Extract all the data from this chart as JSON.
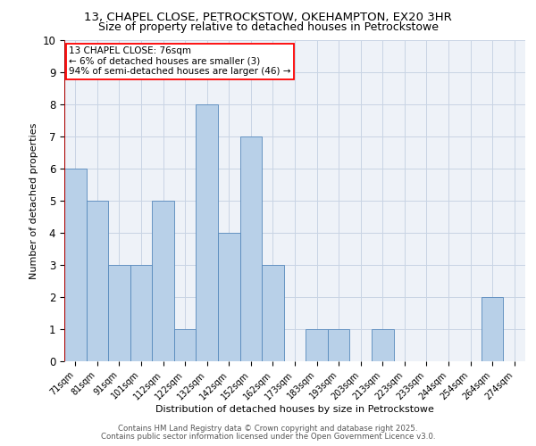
{
  "title_line1": "13, CHAPEL CLOSE, PETROCKSTOW, OKEHAMPTON, EX20 3HR",
  "title_line2": "Size of property relative to detached houses in Petrockstowe",
  "xlabel": "Distribution of detached houses by size in Petrockstowe",
  "ylabel": "Number of detached properties",
  "bin_labels": [
    "71sqm",
    "81sqm",
    "91sqm",
    "101sqm",
    "112sqm",
    "122sqm",
    "132sqm",
    "142sqm",
    "152sqm",
    "162sqm",
    "173sqm",
    "183sqm",
    "193sqm",
    "203sqm",
    "213sqm",
    "223sqm",
    "233sqm",
    "244sqm",
    "254sqm",
    "264sqm",
    "274sqm"
  ],
  "bin_counts": [
    6,
    5,
    3,
    3,
    5,
    1,
    8,
    4,
    7,
    3,
    0,
    1,
    1,
    0,
    1,
    0,
    0,
    0,
    0,
    2,
    0
  ],
  "bar_color": "#b8d0e8",
  "bar_edge_color": "#5588bb",
  "vline_color": "#aa0000",
  "annotation_text": "13 CHAPEL CLOSE: 76sqm\n← 6% of detached houses are smaller (3)\n94% of semi-detached houses are larger (46) →",
  "ylim_max": 10,
  "yticks": [
    0,
    1,
    2,
    3,
    4,
    5,
    6,
    7,
    8,
    9,
    10
  ],
  "footer_line1": "Contains HM Land Registry data © Crown copyright and database right 2025.",
  "footer_line2": "Contains public sector information licensed under the Open Government Licence v3.0.",
  "background_color": "#eef2f8",
  "grid_color": "#c8d4e4",
  "title1_fontsize": 9.5,
  "title2_fontsize": 9.0,
  "xlabel_fontsize": 8.0,
  "ylabel_fontsize": 8.0,
  "xtick_fontsize": 7.0,
  "ytick_fontsize": 8.5,
  "annotation_fontsize": 7.5,
  "footer_fontsize": 6.2
}
